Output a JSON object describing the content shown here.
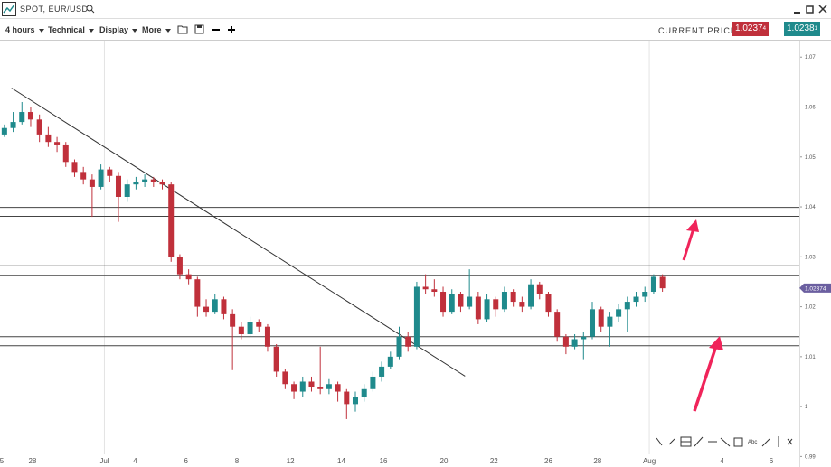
{
  "window": {
    "title": "SPOT, EUR/USD"
  },
  "toolbar": {
    "interval": "4 hours",
    "menus": [
      "Technical",
      "Display",
      "More"
    ],
    "current_price_label": "CURRENT PRICE:",
    "bid": {
      "main": "1.0237",
      "pip": "4"
    },
    "ask": {
      "main": "1.0238",
      "pip": "1"
    }
  },
  "drawing_tools": {
    "text_tool": "Abc"
  },
  "chart_data": {
    "type": "candlestick",
    "up_color": "#1f8a8c",
    "down_color": "#c0303b",
    "candles": [
      [
        1.0545,
        1.0565,
        1.054,
        1.0558
      ],
      [
        1.0558,
        1.059,
        1.055,
        1.057
      ],
      [
        1.057,
        1.061,
        1.0565,
        1.059
      ],
      [
        1.059,
        1.06,
        1.056,
        1.0575
      ],
      [
        1.0575,
        1.0585,
        1.053,
        1.0545
      ],
      [
        1.0545,
        1.056,
        1.052,
        1.053
      ],
      [
        1.053,
        1.054,
        1.051,
        1.0525
      ],
      [
        1.0525,
        1.053,
        1.048,
        1.049
      ],
      [
        1.049,
        1.0495,
        1.046,
        1.047
      ],
      [
        1.047,
        1.048,
        1.0445,
        1.0455
      ],
      [
        1.0455,
        1.0465,
        1.038,
        1.044
      ],
      [
        1.044,
        1.0485,
        1.0435,
        1.0475
      ],
      [
        1.0475,
        1.048,
        1.045,
        1.0462
      ],
      [
        1.0462,
        1.047,
        1.037,
        1.042
      ],
      [
        1.042,
        1.0455,
        1.041,
        1.0445
      ],
      [
        1.0445,
        1.046,
        1.0435,
        1.045
      ],
      [
        1.045,
        1.0465,
        1.044,
        1.0455
      ],
      [
        1.0455,
        1.046,
        1.044,
        1.045
      ],
      [
        1.045,
        1.0455,
        1.0435,
        1.0445
      ],
      [
        1.0445,
        1.045,
        1.029,
        1.03
      ],
      [
        1.03,
        1.0305,
        1.0255,
        1.0265
      ],
      [
        1.0265,
        1.0275,
        1.0245,
        1.0255
      ],
      [
        1.0255,
        1.026,
        1.018,
        1.02
      ],
      [
        1.02,
        1.0215,
        1.018,
        1.019
      ],
      [
        1.019,
        1.0225,
        1.0185,
        1.0215
      ],
      [
        1.0215,
        1.022,
        1.0175,
        1.0185
      ],
      [
        1.0185,
        1.0195,
        1.0073,
        1.016
      ],
      [
        1.016,
        1.017,
        1.0135,
        1.0145
      ],
      [
        1.0145,
        1.018,
        1.014,
        1.017
      ],
      [
        1.017,
        1.0175,
        1.015,
        1.016
      ],
      [
        1.016,
        1.0165,
        1.011,
        1.012
      ],
      [
        1.012,
        1.0125,
        1.006,
        1.007
      ],
      [
        1.007,
        1.0075,
        1.0035,
        1.0045
      ],
      [
        1.0045,
        1.005,
        1.0015,
        1.003
      ],
      [
        1.003,
        1.006,
        1.002,
        1.005
      ],
      [
        1.005,
        1.006,
        1.003,
        1.004
      ],
      [
        1.004,
        1.012,
        1.0025,
        1.0035
      ],
      [
        1.0035,
        1.0055,
        1.0025,
        1.0045
      ],
      [
        1.0045,
        1.005,
        1.001,
        1.003
      ],
      [
        1.003,
        1.0035,
        0.9975,
        1.0005
      ],
      [
        1.0005,
        1.003,
        0.999,
        1.002
      ],
      [
        1.002,
        1.0045,
        1.001,
        1.0035
      ],
      [
        1.0035,
        1.007,
        1.003,
        1.006
      ],
      [
        1.006,
        1.009,
        1.005,
        1.008
      ],
      [
        1.008,
        1.011,
        1.0075,
        1.01
      ],
      [
        1.01,
        1.016,
        1.0095,
        1.014
      ],
      [
        1.014,
        1.015,
        1.011,
        1.012
      ],
      [
        1.012,
        1.025,
        1.0115,
        1.024
      ],
      [
        1.024,
        1.0265,
        1.0225,
        1.0235
      ],
      [
        1.0235,
        1.0255,
        1.022,
        1.023
      ],
      [
        1.023,
        1.024,
        1.018,
        1.019
      ],
      [
        1.019,
        1.0235,
        1.0185,
        1.0225
      ],
      [
        1.0225,
        1.023,
        1.019,
        1.02
      ],
      [
        1.02,
        1.0275,
        1.0195,
        1.022
      ],
      [
        1.022,
        1.023,
        1.0165,
        1.0175
      ],
      [
        1.0175,
        1.0225,
        1.017,
        1.0215
      ],
      [
        1.0215,
        1.022,
        1.018,
        1.0195
      ],
      [
        1.0195,
        1.024,
        1.019,
        1.023
      ],
      [
        1.023,
        1.0235,
        1.02,
        1.021
      ],
      [
        1.021,
        1.022,
        1.019,
        1.02
      ],
      [
        1.02,
        1.0255,
        1.0195,
        1.0245
      ],
      [
        1.0245,
        1.025,
        1.0215,
        1.0225
      ],
      [
        1.0225,
        1.023,
        1.018,
        1.019
      ],
      [
        1.019,
        1.0195,
        1.013,
        1.014
      ],
      [
        1.014,
        1.0145,
        1.0105,
        1.012
      ],
      [
        1.012,
        1.0145,
        1.0115,
        1.0135
      ],
      [
        1.0135,
        1.015,
        1.0095,
        1.014
      ],
      [
        1.014,
        1.021,
        1.0135,
        1.0195
      ],
      [
        1.0195,
        1.02,
        1.015,
        1.016
      ],
      [
        1.016,
        1.019,
        1.012,
        1.018
      ],
      [
        1.018,
        1.0205,
        1.017,
        1.0195
      ],
      [
        1.0195,
        1.022,
        1.015,
        1.021
      ],
      [
        1.021,
        1.023,
        1.02,
        1.022
      ],
      [
        1.022,
        1.024,
        1.021,
        1.023
      ],
      [
        1.023,
        1.0265,
        1.0225,
        1.026
      ],
      [
        1.026,
        1.0265,
        1.023,
        1.0237
      ]
    ],
    "xlim": [
      -0.5,
      90.6
    ],
    "xticks": [
      {
        "value": -0.3,
        "label": "5"
      },
      {
        "value": 3.2,
        "label": "28"
      },
      {
        "value": 11.4,
        "label": "Jul"
      },
      {
        "value": 14.9,
        "label": "4"
      },
      {
        "value": 20.7,
        "label": "6"
      },
      {
        "value": 26.5,
        "label": "8"
      },
      {
        "value": 32.6,
        "label": "12"
      },
      {
        "value": 38.4,
        "label": "14"
      },
      {
        "value": 43.2,
        "label": "16"
      },
      {
        "value": 50.1,
        "label": "20"
      },
      {
        "value": 55.8,
        "label": "22"
      },
      {
        "value": 62,
        "label": "26"
      },
      {
        "value": 67.6,
        "label": "28"
      },
      {
        "value": 73.5,
        "label": "Aug"
      },
      {
        "value": 81.8,
        "label": "4"
      },
      {
        "value": 87.4,
        "label": "6"
      }
    ],
    "ylim": [
      0.9879,
      1.0733
    ],
    "yticks": [
      1.07,
      1.06,
      1.05,
      1.04,
      1.03,
      1.02,
      1.01,
      1,
      0.99
    ],
    "hlines": [
      1.0399,
      1.0381,
      1.0282,
      1.0263,
      1.014,
      1.0122
    ],
    "trendline": {
      "x": [
        0.82,
        52.5
      ],
      "y": [
        1.0638,
        1.0061
      ]
    },
    "current_price": 1.02374,
    "current_price_color": "#6b5fa0"
  }
}
